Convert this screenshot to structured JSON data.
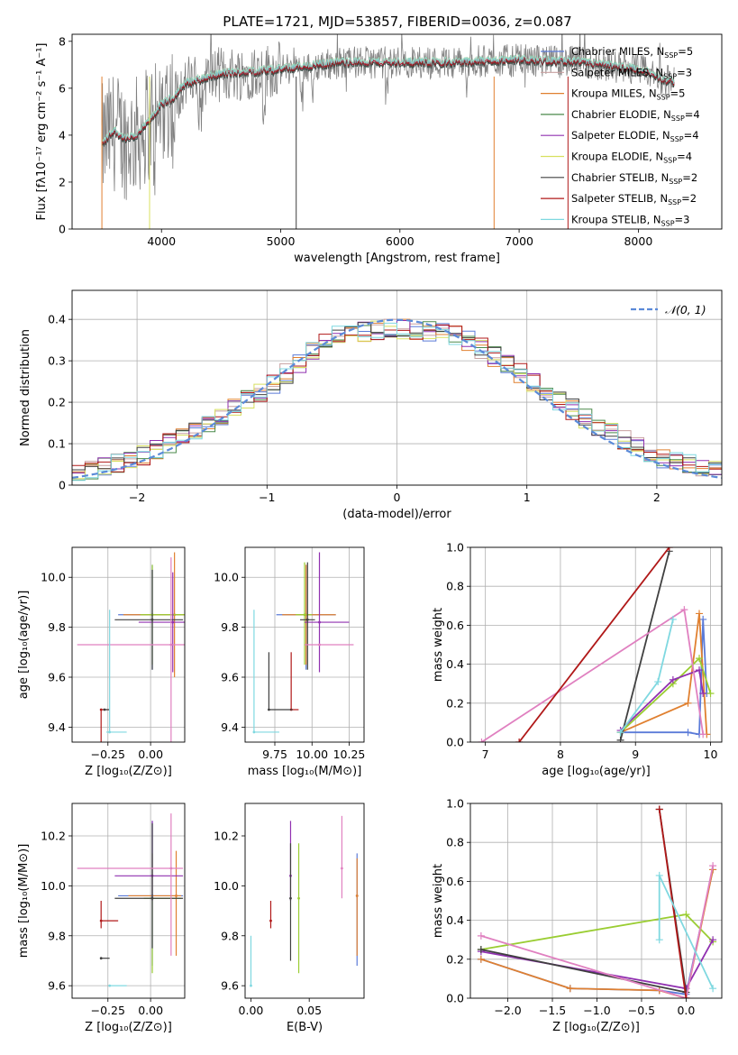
{
  "figure": {
    "title": "PLATE=1721, MJD=53857, FIBERID=0036, z=0.087"
  },
  "chart_data": [
    {
      "type": "line",
      "title": "PLATE=1721, MJD=53857, FIBERID=0036, z=0.087",
      "xlabel": "wavelength [Angstrom, rest frame]",
      "ylabel": "Flux [fλ10⁻¹⁷ erg cm⁻² s⁻¹ A⁻¹]",
      "xlim": [
        3250,
        8700
      ],
      "ylim": [
        0,
        8.3
      ],
      "xticks": [
        4000,
        5000,
        6000,
        7000,
        8000
      ],
      "yticks": [
        0,
        2,
        4,
        6,
        8
      ],
      "grid": false,
      "legend_position": "right",
      "spectrum": {
        "name": "",
        "approximate_shape": {
          "x": [
            3500,
            3600,
            3700,
            3800,
            3900,
            4000,
            4100,
            4200,
            4500,
            5000,
            5500,
            6000,
            6500,
            7000,
            7500,
            8000,
            8300
          ],
          "y": [
            3.6,
            4.2,
            3.8,
            4.0,
            4.6,
            5.3,
            5.6,
            6.2,
            6.6,
            6.8,
            7.1,
            7.1,
            7.1,
            7.2,
            7.1,
            6.8,
            6.2
          ]
        }
      },
      "series": [
        {
          "name": "Chabrier MILES, N$_{SSP}$=5",
          "label": "Chabrier MILES, N",
          "sub": "SSP",
          "suffix": "=5",
          "color": "#5b7bd8"
        },
        {
          "name": "Salpeter MILES, N$_{SSP}$=3",
          "label": "Salpeter MILES, N",
          "sub": "SSP",
          "suffix": "=3",
          "color": "#c8a0a0"
        },
        {
          "name": "Kroupa MILES, N$_{SSP}$=5",
          "label": "Kroupa MILES, N",
          "sub": "SSP",
          "suffix": "=5",
          "color": "#e08030"
        },
        {
          "name": "Chabrier ELODIE, N$_{SSP}$=4",
          "label": "Chabrier ELODIE, N",
          "sub": "SSP",
          "suffix": "=4",
          "color": "#4a8a4a"
        },
        {
          "name": "Salpeter ELODIE, N$_{SSP}$=4",
          "label": "Salpeter ELODIE, N",
          "sub": "SSP",
          "suffix": "=4",
          "color": "#9030b0"
        },
        {
          "name": "Kroupa ELODIE, N$_{SSP}$=4",
          "label": "Kroupa ELODIE, N",
          "sub": "SSP",
          "suffix": "=4",
          "color": "#d8e060"
        },
        {
          "name": "Chabrier STELIB, N$_{SSP}$=2",
          "label": "Chabrier STELIB, N",
          "sub": "SSP",
          "suffix": "=2",
          "color": "#404040"
        },
        {
          "name": "Salpeter STELIB, N$_{SSP}$=2",
          "label": "Salpeter STELIB, N",
          "sub": "SSP",
          "suffix": "=2",
          "color": "#b01818"
        },
        {
          "name": "Kroupa STELIB, N$_{SSP}$=3",
          "label": "Kroupa STELIB, N",
          "sub": "SSP",
          "suffix": "=3",
          "color": "#7fd8e0"
        }
      ]
    },
    {
      "type": "histogram",
      "xlabel": "(data-model)/error",
      "ylabel": "Normed distribution",
      "xlim": [
        -2.5,
        2.5
      ],
      "ylim": [
        0,
        0.47
      ],
      "xticks": [
        -2,
        -1,
        0,
        1,
        2
      ],
      "yticks": [
        0.0,
        0.1,
        0.2,
        0.3,
        0.4
      ],
      "grid": true,
      "legend_position": "top-right",
      "reference_curve": {
        "name": "N(0,1)",
        "label": "𝒩(0, 1)",
        "mu": 0,
        "sigma": 1,
        "color": "#5b8ad8"
      },
      "bin_width": 0.1,
      "histogram_profile": {
        "x": [
          -2.5,
          -2.0,
          -1.5,
          -1.0,
          -0.5,
          0.0,
          0.5,
          1.0,
          1.5,
          2.0,
          2.5
        ],
        "y": [
          0.025,
          0.065,
          0.14,
          0.23,
          0.36,
          0.38,
          0.36,
          0.26,
          0.15,
          0.07,
          0.03
        ]
      }
    },
    {
      "type": "scatter",
      "xlabel": "Z [log₁₀(Z/Z⊙)]",
      "ylabel": "age  [log₁₀(age/yr)]",
      "xlim": [
        -0.46,
        0.2
      ],
      "ylim": [
        9.34,
        10.12
      ],
      "xticks": [
        -0.25,
        0.0
      ],
      "yticks": [
        9.4,
        9.6,
        9.8,
        10.0
      ],
      "grid": true,
      "points": [
        {
          "x": 0.01,
          "y": 9.85,
          "xerr": [
            0.2,
            0.18
          ],
          "yerr": [
            0.22,
            0.2
          ],
          "color": "#5b7bd8"
        },
        {
          "x": 0.14,
          "y": 9.85,
          "xerr": [
            0.3,
            0.06
          ],
          "yerr": [
            0.25,
            0.25
          ],
          "color": "#e08030"
        },
        {
          "x": 0.01,
          "y": 9.85,
          "xerr": [
            0.07,
            0.2
          ],
          "yerr": [
            0.2,
            0.2
          ],
          "color": "#9acd32"
        },
        {
          "x": 0.13,
          "y": 9.82,
          "xerr": [
            0.2,
            0.07
          ],
          "yerr": [
            0.2,
            0.2
          ],
          "color": "#9030b0"
        },
        {
          "x": 0.01,
          "y": 9.83,
          "xerr": [
            0.22,
            0.18
          ],
          "yerr": [
            0.2,
            0.2
          ],
          "color": "#404040"
        },
        {
          "x": 0.12,
          "y": 9.73,
          "xerr": [
            0.55,
            0.08
          ],
          "yerr": [
            0.4,
            0.35
          ],
          "color": "#e080c0"
        },
        {
          "x": -0.29,
          "y": 9.47,
          "xerr": [
            0.0,
            0.05
          ],
          "yerr": [
            0.23,
            0.0
          ],
          "color": "#b01818"
        },
        {
          "x": -0.27,
          "y": 9.47,
          "xerr": [
            0.0,
            0.03
          ],
          "yerr": [
            0.0,
            0.0
          ],
          "color": "#404040"
        },
        {
          "x": -0.24,
          "y": 9.38,
          "xerr": [
            0.02,
            0.1
          ],
          "yerr": [
            0.0,
            0.49
          ],
          "color": "#7fd8e0"
        }
      ]
    },
    {
      "type": "scatter",
      "xlabel": "mass [log₁₀(M/M⊙)]",
      "ylabel": "",
      "xlim": [
        9.55,
        10.35
      ],
      "ylim": [
        9.34,
        10.12
      ],
      "xticks": [
        9.75,
        10.0,
        10.25
      ],
      "yticks": [
        9.4,
        9.6,
        9.8,
        10.0
      ],
      "grid": true,
      "points": [
        {
          "x": 9.96,
          "y": 9.85,
          "xerr": [
            0.2,
            0.2
          ],
          "yerr": [
            0.22,
            0.2
          ],
          "color": "#5b7bd8"
        },
        {
          "x": 9.96,
          "y": 9.85,
          "xerr": [
            0.16,
            0.2
          ],
          "yerr": [
            0.2,
            0.2
          ],
          "color": "#e08030"
        },
        {
          "x": 9.95,
          "y": 9.85,
          "xerr": [
            0.06,
            0.05
          ],
          "yerr": [
            0.2,
            0.21
          ],
          "color": "#9acd32"
        },
        {
          "x": 10.05,
          "y": 9.82,
          "xerr": [
            0.1,
            0.2
          ],
          "yerr": [
            0.2,
            0.28
          ],
          "color": "#9030b0"
        },
        {
          "x": 9.97,
          "y": 9.83,
          "xerr": [
            0.05,
            0.05
          ],
          "yerr": [
            0.2,
            0.23
          ],
          "color": "#404040"
        },
        {
          "x": 10.05,
          "y": 9.73,
          "xerr": [
            0.1,
            0.23
          ],
          "yerr": [
            0.0,
            0.0
          ],
          "color": "#e080c0"
        },
        {
          "x": 9.86,
          "y": 9.47,
          "xerr": [
            0.0,
            0.05
          ],
          "yerr": [
            0.0,
            0.23
          ],
          "color": "#b01818"
        },
        {
          "x": 9.71,
          "y": 9.47,
          "xerr": [
            0.0,
            0.16
          ],
          "yerr": [
            0.0,
            0.23
          ],
          "color": "#404040"
        },
        {
          "x": 9.61,
          "y": 9.38,
          "xerr": [
            0.0,
            0.17
          ],
          "yerr": [
            0.0,
            0.49
          ],
          "color": "#7fd8e0"
        }
      ]
    },
    {
      "type": "line",
      "xlabel": "age  [log₁₀(age/yr)]",
      "ylabel": "mass weight",
      "xlim": [
        6.8,
        10.15
      ],
      "ylim": [
        0,
        1.0
      ],
      "xticks": [
        7,
        8,
        9,
        10
      ],
      "yticks": [
        0.0,
        0.2,
        0.4,
        0.6,
        0.8,
        1.0
      ],
      "grid": true,
      "series": [
        {
          "color": "#5b7bd8",
          "x": [
            8.8,
            9.7,
            9.85,
            9.9,
            9.95
          ],
          "y": [
            0.05,
            0.05,
            0.04,
            0.63,
            0.25
          ]
        },
        {
          "color": "#e08030",
          "x": [
            8.8,
            9.7,
            9.85,
            9.95
          ],
          "y": [
            0.05,
            0.2,
            0.66,
            0.04
          ]
        },
        {
          "color": "#9acd32",
          "x": [
            8.8,
            9.5,
            9.85,
            10.0
          ],
          "y": [
            0.05,
            0.3,
            0.43,
            0.25
          ]
        },
        {
          "color": "#9030b0",
          "x": [
            8.8,
            9.5,
            9.85,
            9.9
          ],
          "y": [
            0.06,
            0.32,
            0.37,
            0.25
          ]
        },
        {
          "color": "#404040",
          "x": [
            8.8,
            9.45
          ],
          "y": [
            0.01,
            0.98
          ]
        },
        {
          "color": "#e080c0",
          "x": [
            6.95,
            9.65,
            9.9
          ],
          "y": [
            0.0,
            0.68,
            0.04
          ]
        },
        {
          "color": "#b01818",
          "x": [
            7.45,
            9.45
          ],
          "y": [
            0.0,
            1.0
          ]
        },
        {
          "color": "#7fd8e0",
          "x": [
            8.8,
            9.3,
            9.5
          ],
          "y": [
            0.05,
            0.31,
            0.63
          ]
        }
      ]
    },
    {
      "type": "scatter",
      "xlabel": "Z [log₁₀(Z/Z⊙)]",
      "ylabel": "mass [log₁₀(M/M⊙)]",
      "xlim": [
        -0.46,
        0.2
      ],
      "ylim": [
        9.55,
        10.33
      ],
      "xticks": [
        -0.25,
        0.0
      ],
      "yticks": [
        9.6,
        9.8,
        10.0,
        10.2
      ],
      "grid": true,
      "points": [
        {
          "x": 0.01,
          "y": 9.96,
          "xerr": [
            0.2,
            0.18
          ],
          "yerr": [
            0.28,
            0.3
          ],
          "color": "#5b7bd8"
        },
        {
          "x": 0.15,
          "y": 9.96,
          "xerr": [
            0.28,
            0.03
          ],
          "yerr": [
            0.24,
            0.18
          ],
          "color": "#e08030"
        },
        {
          "x": 0.01,
          "y": 9.95,
          "xerr": [
            0.05,
            0.17
          ],
          "yerr": [
            0.3,
            0.18
          ],
          "color": "#9acd32"
        },
        {
          "x": 0.01,
          "y": 10.04,
          "xerr": [
            0.22,
            0.18
          ],
          "yerr": [
            0.1,
            0.22
          ],
          "color": "#9030b0"
        },
        {
          "x": 0.01,
          "y": 9.95,
          "xerr": [
            0.22,
            0.18
          ],
          "yerr": [
            0.2,
            0.3
          ],
          "color": "#404040"
        },
        {
          "x": 0.12,
          "y": 10.07,
          "xerr": [
            0.55,
            0.07
          ],
          "yerr": [
            0.35,
            0.22
          ],
          "color": "#e080c0"
        },
        {
          "x": -0.29,
          "y": 9.86,
          "xerr": [
            0.0,
            0.1
          ],
          "yerr": [
            0.03,
            0.08
          ],
          "color": "#b01818"
        },
        {
          "x": -0.29,
          "y": 9.71,
          "xerr": [
            0.0,
            0.05
          ],
          "yerr": [
            0.0,
            0.0
          ],
          "color": "#404040"
        },
        {
          "x": -0.24,
          "y": 9.6,
          "xerr": [
            0.0,
            0.1
          ],
          "yerr": [
            0.0,
            0.0
          ],
          "color": "#7fd8e0"
        }
      ]
    },
    {
      "type": "scatter",
      "xlabel": "E(B-V)",
      "ylabel": "",
      "xlim": [
        -0.005,
        0.097
      ],
      "ylim": [
        9.55,
        10.33
      ],
      "xticks": [
        0.0,
        0.05
      ],
      "yticks": [
        9.6,
        9.8,
        10.0,
        10.2
      ],
      "grid": false,
      "points": [
        {
          "x": 0.091,
          "y": 9.96,
          "yerr": [
            0.28,
            0.17
          ],
          "color": "#5b7bd8"
        },
        {
          "x": 0.091,
          "y": 9.96,
          "yerr": [
            0.24,
            0.15
          ],
          "color": "#e08030"
        },
        {
          "x": 0.041,
          "y": 9.95,
          "yerr": [
            0.3,
            0.22
          ],
          "color": "#9acd32"
        },
        {
          "x": 0.034,
          "y": 10.04,
          "yerr": [
            0.1,
            0.22
          ],
          "color": "#9030b0"
        },
        {
          "x": 0.034,
          "y": 9.95,
          "yerr": [
            0.25,
            0.22
          ],
          "color": "#404040"
        },
        {
          "x": 0.078,
          "y": 10.07,
          "yerr": [
            0.12,
            0.21
          ],
          "color": "#e080c0"
        },
        {
          "x": 0.017,
          "y": 9.86,
          "yerr": [
            0.03,
            0.08
          ],
          "color": "#b01818"
        },
        {
          "x": 0.0,
          "y": 9.6,
          "yerr": [
            0.0,
            0.2
          ],
          "color": "#7fd8e0"
        }
      ]
    },
    {
      "type": "line",
      "xlabel": "Z [log₁₀(Z/Z⊙)]",
      "ylabel": "mass weight",
      "xlim": [
        -2.42,
        0.4
      ],
      "ylim": [
        0,
        1.0
      ],
      "xticks": [
        -2.0,
        -1.5,
        -1.0,
        -0.5,
        0.0
      ],
      "yticks": [
        0.0,
        0.2,
        0.4,
        0.6,
        0.8,
        1.0
      ],
      "grid": true,
      "series": [
        {
          "color": "#5b7bd8",
          "x": [
            -2.3,
            -1.3,
            -0.3,
            0.0,
            0.3
          ],
          "y": [
            0.2,
            0.05,
            0.04,
            0.02,
            0.66
          ]
        },
        {
          "color": "#e08030",
          "x": [
            -2.3,
            -1.3,
            -0.3,
            0.0,
            0.3
          ],
          "y": [
            0.2,
            0.05,
            0.04,
            0.0,
            0.66
          ]
        },
        {
          "color": "#9acd32",
          "x": [
            -2.3,
            0.0,
            0.3
          ],
          "y": [
            0.25,
            0.43,
            0.29
          ]
        },
        {
          "color": "#9030b0",
          "x": [
            -2.3,
            0.0,
            0.3
          ],
          "y": [
            0.24,
            0.05,
            0.3
          ]
        },
        {
          "color": "#404040",
          "x": [
            -2.3,
            0.0,
            -0.3
          ],
          "y": [
            0.25,
            0.03,
            0.97
          ]
        },
        {
          "color": "#e080c0",
          "x": [
            -2.3,
            0.0,
            0.3
          ],
          "y": [
            0.32,
            0.0,
            0.68
          ]
        },
        {
          "color": "#b01818",
          "x": [
            -0.3,
            0.0
          ],
          "y": [
            0.97,
            0.0
          ]
        },
        {
          "color": "#7fd8e0",
          "x": [
            -0.3,
            -0.3,
            0.3
          ],
          "y": [
            0.3,
            0.63,
            0.05
          ]
        }
      ]
    }
  ]
}
